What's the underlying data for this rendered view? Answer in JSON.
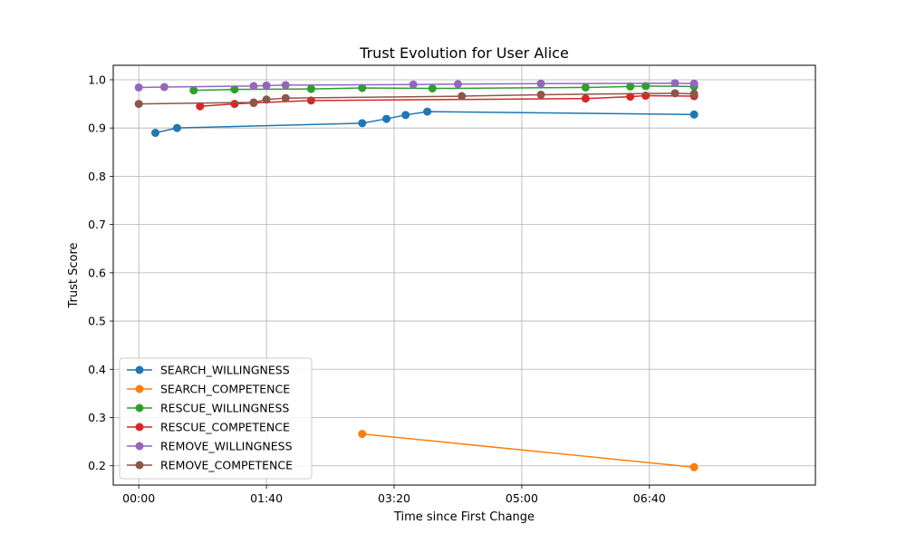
{
  "chart_data": {
    "type": "line",
    "title": "Trust Evolution for User Alice",
    "xlabel": "Time since First Change",
    "ylabel": "Trust Score",
    "x_unit": "mm:ss",
    "xlim": [
      "-00:20",
      "08:50"
    ],
    "ylim": [
      0.16,
      1.03
    ],
    "x_ticks": [
      "00:00",
      "01:40",
      "03:20",
      "05:00",
      "06:40"
    ],
    "y_ticks": [
      "0.2",
      "0.3",
      "0.4",
      "0.5",
      "0.6",
      "0.7",
      "0.8",
      "0.9",
      "1.0"
    ],
    "grid": true,
    "legend_position": "lower-left",
    "series": [
      {
        "name": "SEARCH_WILLINGNESS",
        "color": "#1f77b4",
        "x": [
          "00:13",
          "00:30",
          "02:55",
          "03:14",
          "03:29",
          "03:46",
          "07:15"
        ],
        "y": [
          0.89,
          0.9,
          0.91,
          0.919,
          0.927,
          0.934,
          0.928
        ]
      },
      {
        "name": "SEARCH_COMPETENCE",
        "color": "#ff7f0e",
        "x": [
          "02:55",
          "07:15"
        ],
        "y": [
          0.266,
          0.197
        ]
      },
      {
        "name": "RESCUE_WILLINGNESS",
        "color": "#2ca02c",
        "x": [
          "00:43",
          "01:15",
          "02:15",
          "02:55",
          "03:50",
          "05:50",
          "06:25",
          "06:37",
          "07:15"
        ],
        "y": [
          0.978,
          0.98,
          0.981,
          0.983,
          0.982,
          0.984,
          0.986,
          0.987,
          0.986
        ]
      },
      {
        "name": "RESCUE_COMPETENCE",
        "color": "#d62728",
        "x": [
          "00:48",
          "01:15",
          "01:30",
          "02:15",
          "05:50",
          "06:25",
          "06:37",
          "07:15"
        ],
        "y": [
          0.945,
          0.95,
          0.952,
          0.957,
          0.961,
          0.965,
          0.967,
          0.966
        ]
      },
      {
        "name": "REMOVE_WILLINGNESS",
        "color": "#9467bd",
        "x": [
          "00:00",
          "00:20",
          "01:30",
          "01:40",
          "01:55",
          "03:35",
          "04:10",
          "05:15",
          "07:00",
          "07:15"
        ],
        "y": [
          0.984,
          0.985,
          0.987,
          0.988,
          0.989,
          0.99,
          0.991,
          0.992,
          0.993,
          0.992
        ]
      },
      {
        "name": "REMOVE_COMPETENCE",
        "color": "#8c564b",
        "x": [
          "00:00",
          "01:30",
          "01:40",
          "01:55",
          "04:13",
          "05:15",
          "07:00",
          "07:15"
        ],
        "y": [
          0.95,
          0.953,
          0.959,
          0.962,
          0.966,
          0.969,
          0.972,
          0.971
        ]
      }
    ]
  }
}
